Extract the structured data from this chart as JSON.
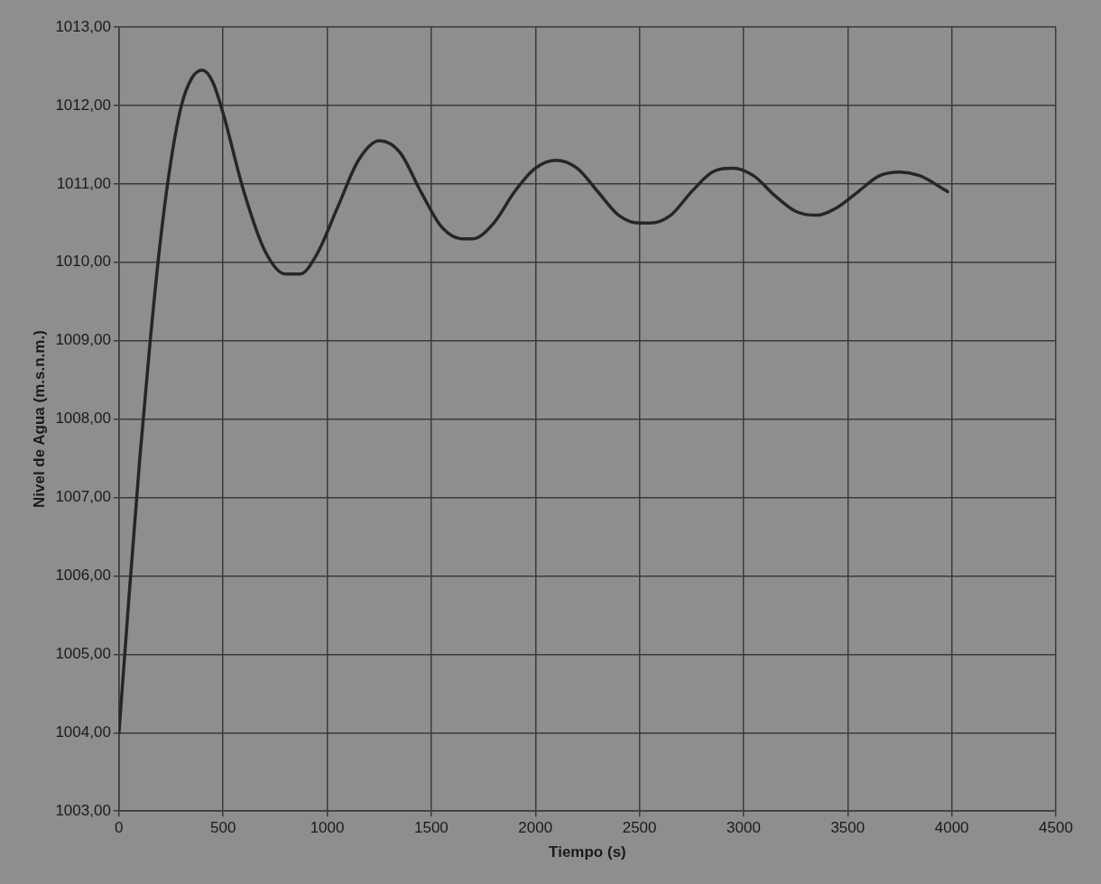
{
  "chart_data": {
    "type": "line",
    "xlabel": "Tiempo (s)",
    "ylabel": "Nivel de Agua (m.s.n.m.)",
    "x": [
      0,
      50,
      100,
      150,
      200,
      250,
      300,
      350,
      400,
      450,
      500,
      600,
      700,
      800,
      870,
      950,
      1050,
      1150,
      1250,
      1350,
      1450,
      1550,
      1650,
      1700,
      1800,
      1900,
      2000,
      2100,
      2200,
      2300,
      2400,
      2500,
      2550,
      2650,
      2750,
      2850,
      2950,
      3050,
      3150,
      3250,
      3350,
      3450,
      3550,
      3650,
      3750,
      3850,
      3950,
      3980
    ],
    "series": [
      {
        "color": "#262626",
        "values": [
          1004,
          1005.8,
          1007.5,
          1009,
          1010.3,
          1011.3,
          1012,
          1012.35,
          1012.45,
          1012.3,
          1011.9,
          1010.9,
          1010.15,
          1009.85,
          1009.85,
          1010.1,
          1010.7,
          1011.3,
          1011.55,
          1011.4,
          1010.9,
          1010.45,
          1010.3,
          1010.3,
          1010.5,
          1010.9,
          1011.2,
          1011.3,
          1011.2,
          1010.9,
          1010.6,
          1010.5,
          1010.5,
          1010.6,
          1010.9,
          1011.15,
          1011.2,
          1011.1,
          1010.85,
          1010.65,
          1010.6,
          1010.7,
          1010.9,
          1011.1,
          1011.15,
          1011.1,
          1010.95,
          1010.9
        ]
      }
    ],
    "xlim": [
      0,
      4500
    ],
    "xticks": [
      0,
      500,
      1000,
      1500,
      2000,
      2500,
      3000,
      3500,
      4000,
      4500
    ],
    "ylim": [
      1003,
      1013
    ],
    "yticks": [
      {
        "value": 1003,
        "label": "1003,00"
      },
      {
        "value": 1004,
        "label": "1004,00"
      },
      {
        "value": 1005,
        "label": "1005,00"
      },
      {
        "value": 1006,
        "label": "1006,00"
      },
      {
        "value": 1007,
        "label": "1007,00"
      },
      {
        "value": 1008,
        "label": "1008,00"
      },
      {
        "value": 1009,
        "label": "1009,00"
      },
      {
        "value": 1010,
        "label": "1010,00"
      },
      {
        "value": 1011,
        "label": "1011,00"
      },
      {
        "value": 1012,
        "label": "1012,00"
      },
      {
        "value": 1013,
        "label": "1013,00"
      }
    ],
    "grid": true,
    "legend": false,
    "marker": "none",
    "line_style": "solid"
  }
}
